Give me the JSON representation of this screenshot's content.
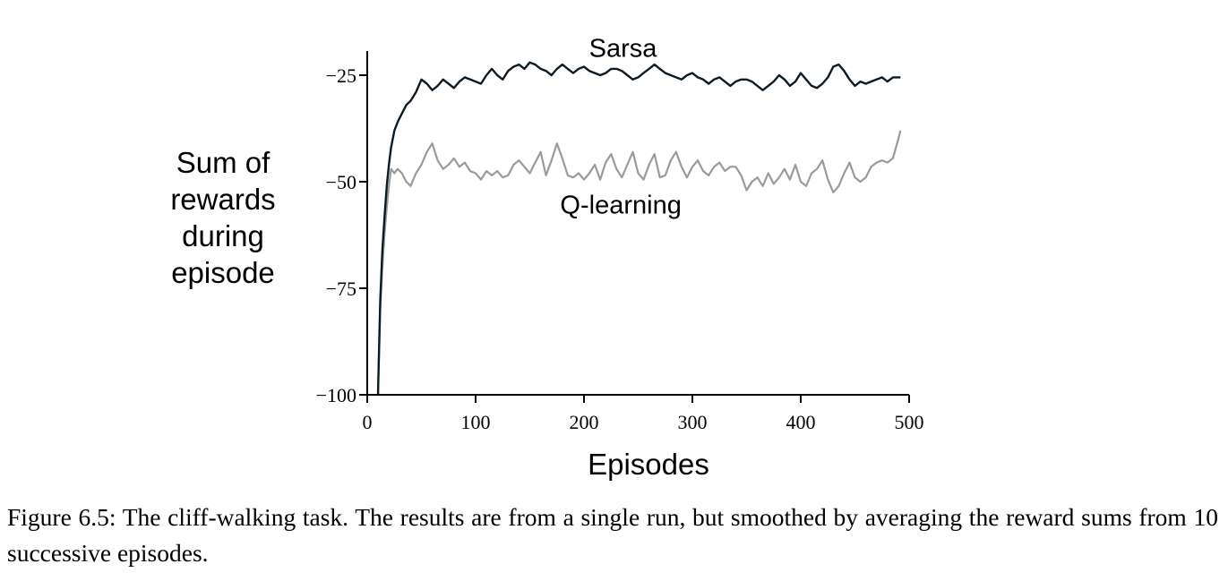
{
  "chart_data": {
    "type": "line",
    "xlabel": "Episodes",
    "ylabel": [
      "Sum of",
      "rewards",
      "during",
      "episode"
    ],
    "xlim": [
      0,
      500
    ],
    "ylim": [
      -100,
      -20
    ],
    "x_ticks": [
      "0",
      "100",
      "200",
      "300",
      "400",
      "500"
    ],
    "y_ticks": [
      "−25",
      "−50",
      "−75",
      "−100"
    ],
    "x_tick_values": [
      0,
      100,
      200,
      300,
      400,
      500
    ],
    "y_tick_values": [
      -25,
      -50,
      -75,
      -100
    ],
    "grid": false,
    "series": [
      {
        "name": "Sarsa",
        "color": "#0d1b24",
        "x": [
          10,
          12,
          14,
          16,
          18,
          20,
          22,
          25,
          28,
          32,
          36,
          40,
          45,
          50,
          55,
          60,
          65,
          70,
          75,
          80,
          85,
          90,
          95,
          100,
          105,
          110,
          115,
          120,
          125,
          130,
          135,
          140,
          145,
          150,
          155,
          160,
          165,
          170,
          175,
          180,
          185,
          190,
          195,
          200,
          205,
          210,
          215,
          220,
          225,
          230,
          235,
          240,
          245,
          250,
          255,
          260,
          265,
          270,
          275,
          280,
          285,
          290,
          295,
          300,
          305,
          310,
          315,
          320,
          325,
          330,
          335,
          340,
          345,
          350,
          355,
          360,
          365,
          370,
          375,
          380,
          385,
          390,
          395,
          400,
          405,
          410,
          415,
          420,
          425,
          430,
          435,
          440,
          445,
          450,
          455,
          460,
          465,
          470,
          475,
          480,
          485,
          490,
          492
        ],
        "y": [
          -99,
          -78,
          -66,
          -58,
          -51,
          -46,
          -42,
          -38,
          -36,
          -34,
          -32,
          -31,
          -29,
          -26,
          -27,
          -28.5,
          -27.5,
          -26,
          -27,
          -28,
          -26.5,
          -25.5,
          -26,
          -26.5,
          -27,
          -25,
          -23.5,
          -25,
          -26,
          -24,
          -23,
          -22.5,
          -23.5,
          -22,
          -22.5,
          -23.5,
          -24,
          -25,
          -23.5,
          -22.5,
          -23.5,
          -24.5,
          -23.5,
          -23,
          -24,
          -24.5,
          -25,
          -24.5,
          -23.5,
          -23.5,
          -24,
          -25,
          -26,
          -25.5,
          -24.5,
          -23.5,
          -22.5,
          -23.5,
          -24.5,
          -25,
          -25.5,
          -26,
          -25,
          -24.5,
          -25.5,
          -26,
          -27,
          -26,
          -25.5,
          -26.5,
          -27.5,
          -26.5,
          -26,
          -26,
          -26.5,
          -27.5,
          -28.5,
          -27.5,
          -26.5,
          -25,
          -26,
          -27.5,
          -26.5,
          -24.5,
          -26,
          -27.5,
          -28,
          -27,
          -25.5,
          -23,
          -22.5,
          -24,
          -26,
          -27.5,
          -26.5,
          -27,
          -26.5,
          -26,
          -25.5,
          -26.5,
          -25.5,
          -25.5,
          -25.5
        ]
      },
      {
        "name": "Q-learning",
        "color": "#9a9a9a",
        "x": [
          10,
          12,
          14,
          16,
          18,
          20,
          22,
          25,
          28,
          32,
          36,
          40,
          45,
          50,
          55,
          60,
          65,
          70,
          75,
          80,
          85,
          90,
          95,
          100,
          105,
          110,
          115,
          120,
          125,
          130,
          135,
          140,
          145,
          150,
          155,
          160,
          165,
          170,
          175,
          180,
          185,
          190,
          195,
          200,
          205,
          210,
          215,
          220,
          225,
          230,
          235,
          240,
          245,
          250,
          255,
          260,
          265,
          270,
          275,
          280,
          285,
          290,
          295,
          300,
          305,
          310,
          315,
          320,
          325,
          330,
          335,
          340,
          345,
          350,
          355,
          360,
          365,
          370,
          375,
          380,
          385,
          390,
          395,
          400,
          405,
          410,
          415,
          420,
          425,
          430,
          435,
          440,
          445,
          450,
          455,
          460,
          465,
          470,
          475,
          480,
          485,
          490,
          492
        ],
        "y": [
          -99,
          -80,
          -70,
          -62,
          -56,
          -51,
          -47,
          -48,
          -47,
          -48,
          -50,
          -51,
          -48,
          -46,
          -43,
          -41,
          -45,
          -47,
          -46,
          -44.5,
          -46.5,
          -45.5,
          -47.5,
          -48,
          -49.5,
          -47.5,
          -48.5,
          -47.5,
          -49,
          -48.5,
          -46,
          -45,
          -46.5,
          -48,
          -45.5,
          -43,
          -48.5,
          -45,
          -41,
          -44.5,
          -48.5,
          -49,
          -48,
          -49.5,
          -48,
          -46,
          -49.5,
          -45.5,
          -43.5,
          -47,
          -49,
          -46,
          -43,
          -48,
          -49.5,
          -46,
          -43.5,
          -49,
          -48.5,
          -45,
          -43,
          -46.5,
          -49,
          -46.5,
          -45,
          -47.5,
          -48.5,
          -46.5,
          -45.5,
          -47.5,
          -46.5,
          -46.5,
          -48.5,
          -52,
          -50,
          -49,
          -51,
          -48,
          -50.5,
          -49,
          -47,
          -49.5,
          -46,
          -50,
          -51,
          -48,
          -47,
          -45,
          -49.5,
          -52.5,
          -51,
          -48,
          -45.5,
          -49,
          -50,
          -49,
          -46.5,
          -45.5,
          -45,
          -45.5,
          -44.5,
          -40,
          -38
        ]
      }
    ],
    "annotations": [
      {
        "text": "Sarsa",
        "x": 236,
        "y": -20.7
      },
      {
        "text": "Q-learning",
        "x": 234,
        "y": -57.5
      }
    ]
  },
  "caption": "Figure 6.5: The cliff-walking task. The results are from a single run, but smoothed by averaging the reward sums from 10 successive episodes."
}
